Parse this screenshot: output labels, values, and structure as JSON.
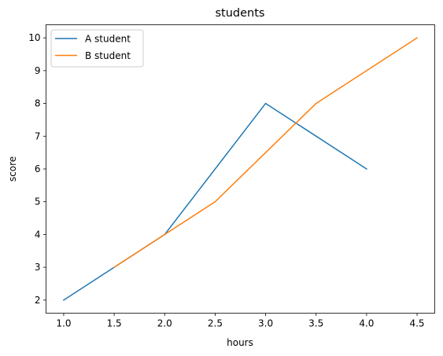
{
  "chart_data": {
    "type": "line",
    "title": "students",
    "xlabel": "hours",
    "ylabel": "score",
    "xlim": [
      0.825,
      4.675
    ],
    "ylim": [
      1.6,
      10.4
    ],
    "xticks": [
      1.0,
      1.5,
      2.0,
      2.5,
      3.0,
      3.5,
      4.0,
      4.5
    ],
    "xtick_labels": [
      "1.0",
      "1.5",
      "2.0",
      "2.5",
      "3.0",
      "3.5",
      "4.0",
      "4.5"
    ],
    "yticks": [
      2,
      3,
      4,
      5,
      6,
      7,
      8,
      9,
      10
    ],
    "ytick_labels": [
      "2",
      "3",
      "4",
      "5",
      "6",
      "7",
      "8",
      "9",
      "10"
    ],
    "grid": false,
    "legend_position": "upper-left",
    "series": [
      {
        "name": "A student",
        "color": "#1f77b4",
        "x": [
          1.0,
          1.5,
          2.0,
          3.0,
          4.0
        ],
        "y": [
          2,
          3,
          4,
          8,
          6
        ]
      },
      {
        "name": "B student",
        "color": "#ff7f0e",
        "x": [
          1.5,
          2.0,
          2.5,
          3.5,
          4.5
        ],
        "y": [
          3,
          4,
          5,
          8,
          10
        ]
      }
    ]
  }
}
